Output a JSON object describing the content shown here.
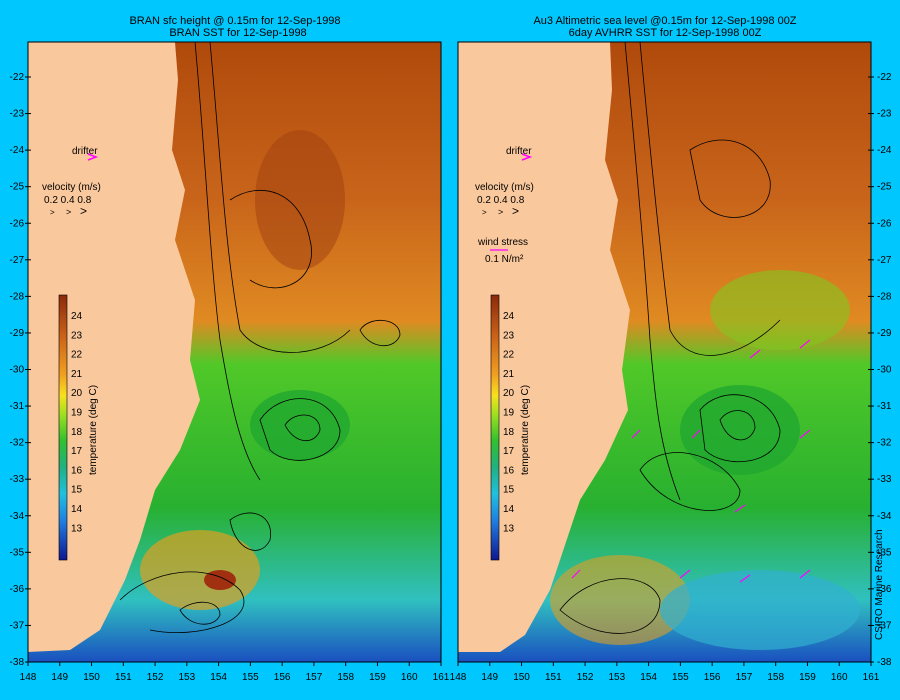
{
  "left_panel": {
    "title_line1": "BRAN sfc height @ 0.15m  for 12-Sep-1998",
    "title_line2": "BRAN SST for 12-Sep-1998",
    "drifter_label": "drifter",
    "velocity_title": "velocity (m/s)",
    "velocity_values": "0.2 0.4 0.8"
  },
  "right_panel": {
    "title_line1": "Au3 Altimetric sea level  @0.15m  for 12-Sep-1998 00Z",
    "title_line2": "6day AVHRR SST for 12-Sep-1998 00Z",
    "drifter_label": "drifter",
    "velocity_title": "velocity (m/s)",
    "velocity_values": "0.2 0.4 0.8",
    "wind_title": "wind stress",
    "wind_value": "0.1 N/m²"
  },
  "colorbar": {
    "label": "temperature (deg C)",
    "ticks": [
      "24",
      "23",
      "22",
      "21",
      "20",
      "19",
      "18",
      "17",
      "16",
      "15",
      "14",
      "13"
    ]
  },
  "x_axis_ticks": [
    "148",
    "149",
    "150",
    "151",
    "152",
    "153",
    "154",
    "155",
    "156",
    "157",
    "158",
    "159",
    "160",
    "161"
  ],
  "y_axis_ticks": [
    "-22",
    "-23",
    "-24",
    "-25",
    "-26",
    "-27",
    "-28",
    "-29",
    "-30",
    "-31",
    "-32",
    "-33",
    "-34",
    "-35",
    "-36",
    "-37",
    "-38"
  ],
  "credit": "CSIRO Marine Research",
  "colors": {
    "background": "#00c8ff",
    "land": "#f9c89c",
    "warm": "#b8520a",
    "mid": "#f0a020",
    "cool_green": "#30c030",
    "cold": "#2080e0",
    "arrow": "#ff00ff"
  }
}
